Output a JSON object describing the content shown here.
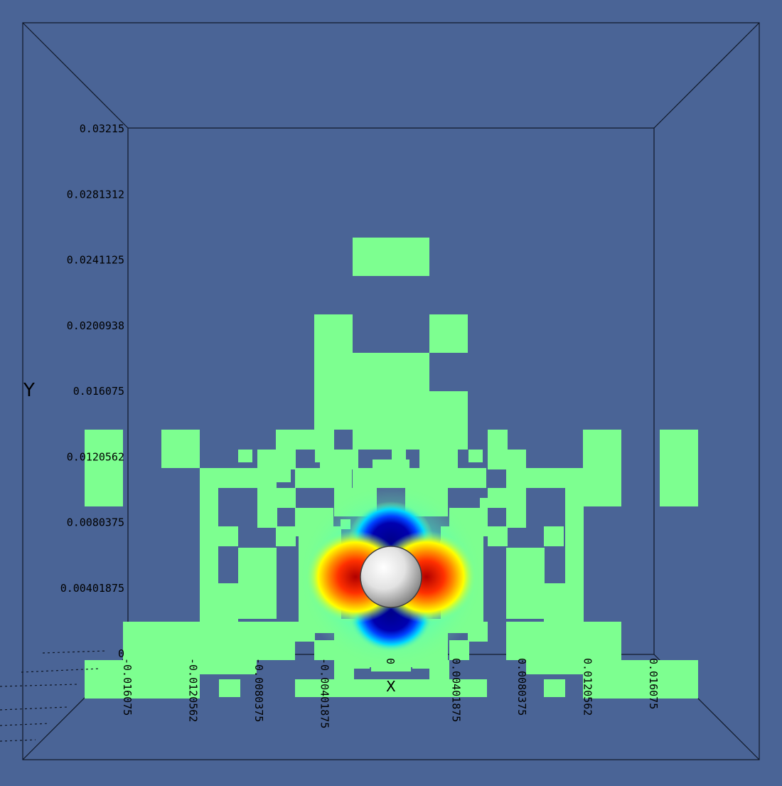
{
  "colors": {
    "background": "#4a6496",
    "frame": "#101828",
    "cell": "#7dff90",
    "sphere": "#e6e6e6"
  },
  "axes": {
    "y_title": "Y",
    "x_title": "X",
    "y_ticks": [
      "0.03215",
      "0.0281312",
      "0.0241125",
      "0.0200938",
      "0.016075",
      "0.0120562",
      "0.0080375",
      "0.00401875",
      "0"
    ],
    "x_ticks": [
      "-0.016075",
      "-0.0120562",
      "-0.0080375",
      "-0.00401875",
      "0",
      "0.00401875",
      "0.0080375",
      "0.0120562",
      "0.016075"
    ]
  },
  "field": {
    "colormap": [
      "#00008b",
      "#0040ff",
      "#00d8ff",
      "#7dff90",
      "#ffff00",
      "#ff8000",
      "#c80000"
    ],
    "shaded_object": "sphere"
  }
}
